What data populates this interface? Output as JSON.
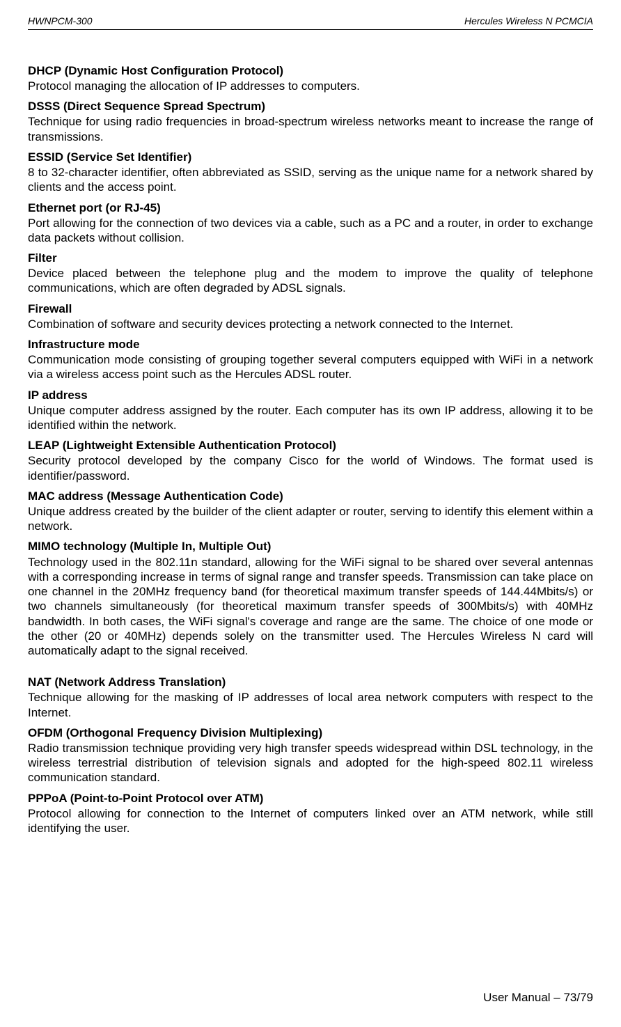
{
  "header": {
    "left": "HWNPCM-300",
    "right": "Hercules Wireless N PCMCIA"
  },
  "entries": [
    {
      "term": "DHCP (Dynamic Host Configuration Protocol)",
      "definition": "Protocol managing the allocation of IP addresses to computers."
    },
    {
      "term": "DSSS (Direct Sequence Spread Spectrum)",
      "definition": "Technique for using radio frequencies in broad-spectrum wireless networks meant to increase the range of transmissions."
    },
    {
      "term": "ESSID (Service Set Identifier)",
      "definition": "8 to 32-character identifier, often abbreviated as SSID, serving as the unique name for a network shared by clients and the access point."
    },
    {
      "term": "Ethernet port (or RJ-45)",
      "definition": "Port allowing for the connection of two devices via a cable, such as a PC and a router, in order to exchange data packets without collision."
    },
    {
      "term": "Filter",
      "definition": "Device placed between the telephone plug and the modem to improve the quality of telephone communications, which are often degraded by ADSL signals."
    },
    {
      "term": "Firewall",
      "definition": "Combination of software and security devices protecting a network connected to the Internet."
    },
    {
      "term": "Infrastructure mode",
      "definition": "Communication mode consisting of grouping together several computers equipped with WiFi in a network via a wireless access point such as the Hercules ADSL router."
    },
    {
      "term": "IP address",
      "definition": "Unique computer address assigned by the router.  Each computer has its own IP address, allowing it to be identified within the network."
    },
    {
      "term": "LEAP (Lightweight Extensible Authentication Protocol)",
      "definition": "Security protocol developed by the company Cisco for the world of Windows.  The format used is identifier/password."
    },
    {
      "term": "MAC address (Message Authentication Code)",
      "definition": "Unique address created by the builder of the client adapter or router, serving to identify this element within a network."
    },
    {
      "term": "MIMO technology (Multiple In, Multiple Out)",
      "definition": "Technology used in the 802.11n standard, allowing for the WiFi signal to be shared over several antennas with a corresponding increase in terms of signal range and transfer speeds.  Transmission can take place on one channel in the 20MHz frequency band (for theoretical maximum transfer speeds of 144.44Mbits/s) or two channels simultaneously (for theoretical maximum transfer speeds of 300Mbits/s) with 40MHz bandwidth.  In both cases, the WiFi signal's coverage and range are the same.  The choice of one mode or the other (20 or 40MHz) depends solely on the transmitter used.  The Hercules Wireless N card will automatically adapt to the signal received."
    },
    {
      "term": "NAT (Network Address Translation)",
      "definition": "Technique allowing for the masking of IP addresses of local area network computers with respect to the Internet.",
      "spacer_before": true
    },
    {
      "term": "OFDM (Orthogonal Frequency Division Multiplexing)",
      "definition": "Radio transmission technique providing very high transfer speeds widespread within DSL technology, in the wireless terrestrial distribution of television signals and adopted for the high-speed 802.11 wireless communication standard."
    },
    {
      "term": "PPPoA (Point-to-Point Protocol over ATM)",
      "definition": "Protocol allowing for connection to the Internet of computers linked over an ATM network, while still identifying the user."
    }
  ],
  "footer": "User Manual – 73/79"
}
